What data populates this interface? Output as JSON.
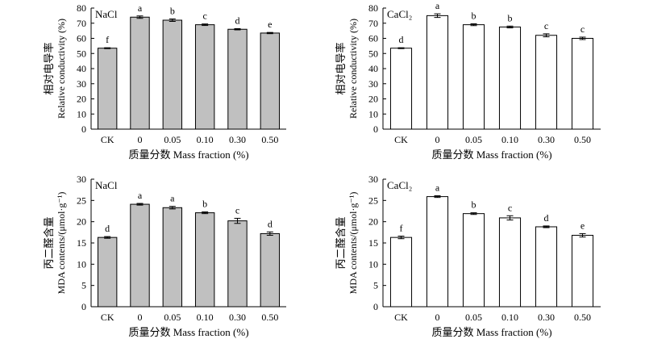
{
  "chart_data": [
    {
      "type": "bar",
      "panel_label": "NaCl",
      "categories": [
        "CK",
        "0",
        "0.05",
        "0.10",
        "0.30",
        "0.50"
      ],
      "values": [
        53.5,
        74.0,
        72.0,
        69.0,
        66.0,
        63.5
      ],
      "errors": [
        0.3,
        0.8,
        0.8,
        0.5,
        0.4,
        0.4
      ],
      "letters": [
        "f",
        "a",
        "b",
        "c",
        "d",
        "e"
      ],
      "bar_color": "#c0c0c0",
      "ylabel_cn": "相对电导率",
      "ylabel": "Relative conductivity (%)",
      "xlabel": "质量分数 Mass fraction (%)",
      "ylim": [
        0,
        80
      ],
      "yticks": [
        0,
        10,
        20,
        30,
        40,
        50,
        60,
        70,
        80
      ]
    },
    {
      "type": "bar",
      "panel_label": "CaCl₂",
      "categories": [
        "CK",
        "0",
        "0.05",
        "0.10",
        "0.30",
        "0.50"
      ],
      "values": [
        53.5,
        75.0,
        69.0,
        67.5,
        62.0,
        60.0
      ],
      "errors": [
        0.3,
        1.2,
        0.6,
        0.6,
        1.0,
        0.8
      ],
      "letters": [
        "d",
        "a",
        "b",
        "b",
        "c",
        "c"
      ],
      "bar_color": "#ffffff",
      "ylabel_cn": "相对电导率",
      "ylabel": "Relative conductivity (%)",
      "xlabel": "质量分数 Mass fraction (%)",
      "ylim": [
        0,
        80
      ],
      "yticks": [
        0,
        10,
        20,
        30,
        40,
        50,
        60,
        70,
        80
      ]
    },
    {
      "type": "bar",
      "panel_label": "NaCl",
      "categories": [
        "CK",
        "0",
        "0.05",
        "0.10",
        "0.30",
        "0.50"
      ],
      "values": [
        16.3,
        24.1,
        23.3,
        22.1,
        20.2,
        17.2
      ],
      "errors": [
        0.2,
        0.2,
        0.3,
        0.2,
        0.6,
        0.4
      ],
      "letters": [
        "d",
        "a",
        "a",
        "b",
        "c",
        "d"
      ],
      "bar_color": "#c0c0c0",
      "ylabel_cn": "丙二醛含量",
      "ylabel": "MDA contents/(μmol·g⁻¹)",
      "xlabel": "质量分数 Mass fraction (%)",
      "ylim": [
        0,
        30
      ],
      "yticks": [
        0,
        5,
        10,
        15,
        20,
        25,
        30
      ]
    },
    {
      "type": "bar",
      "panel_label": "CaCl₂",
      "categories": [
        "CK",
        "0",
        "0.05",
        "0.10",
        "0.30",
        "0.50"
      ],
      "values": [
        16.3,
        25.9,
        21.9,
        20.9,
        18.8,
        16.8
      ],
      "errors": [
        0.3,
        0.2,
        0.2,
        0.5,
        0.2,
        0.4
      ],
      "letters": [
        "f",
        "a",
        "b",
        "c",
        "d",
        "e"
      ],
      "bar_color": "#ffffff",
      "ylabel_cn": "丙二醛含量",
      "ylabel": "MDA contents/(μmol·g⁻¹)",
      "xlabel": "质量分数 Mass fraction (%)",
      "ylim": [
        0,
        30
      ],
      "yticks": [
        0,
        5,
        10,
        15,
        20,
        25,
        30
      ]
    }
  ]
}
